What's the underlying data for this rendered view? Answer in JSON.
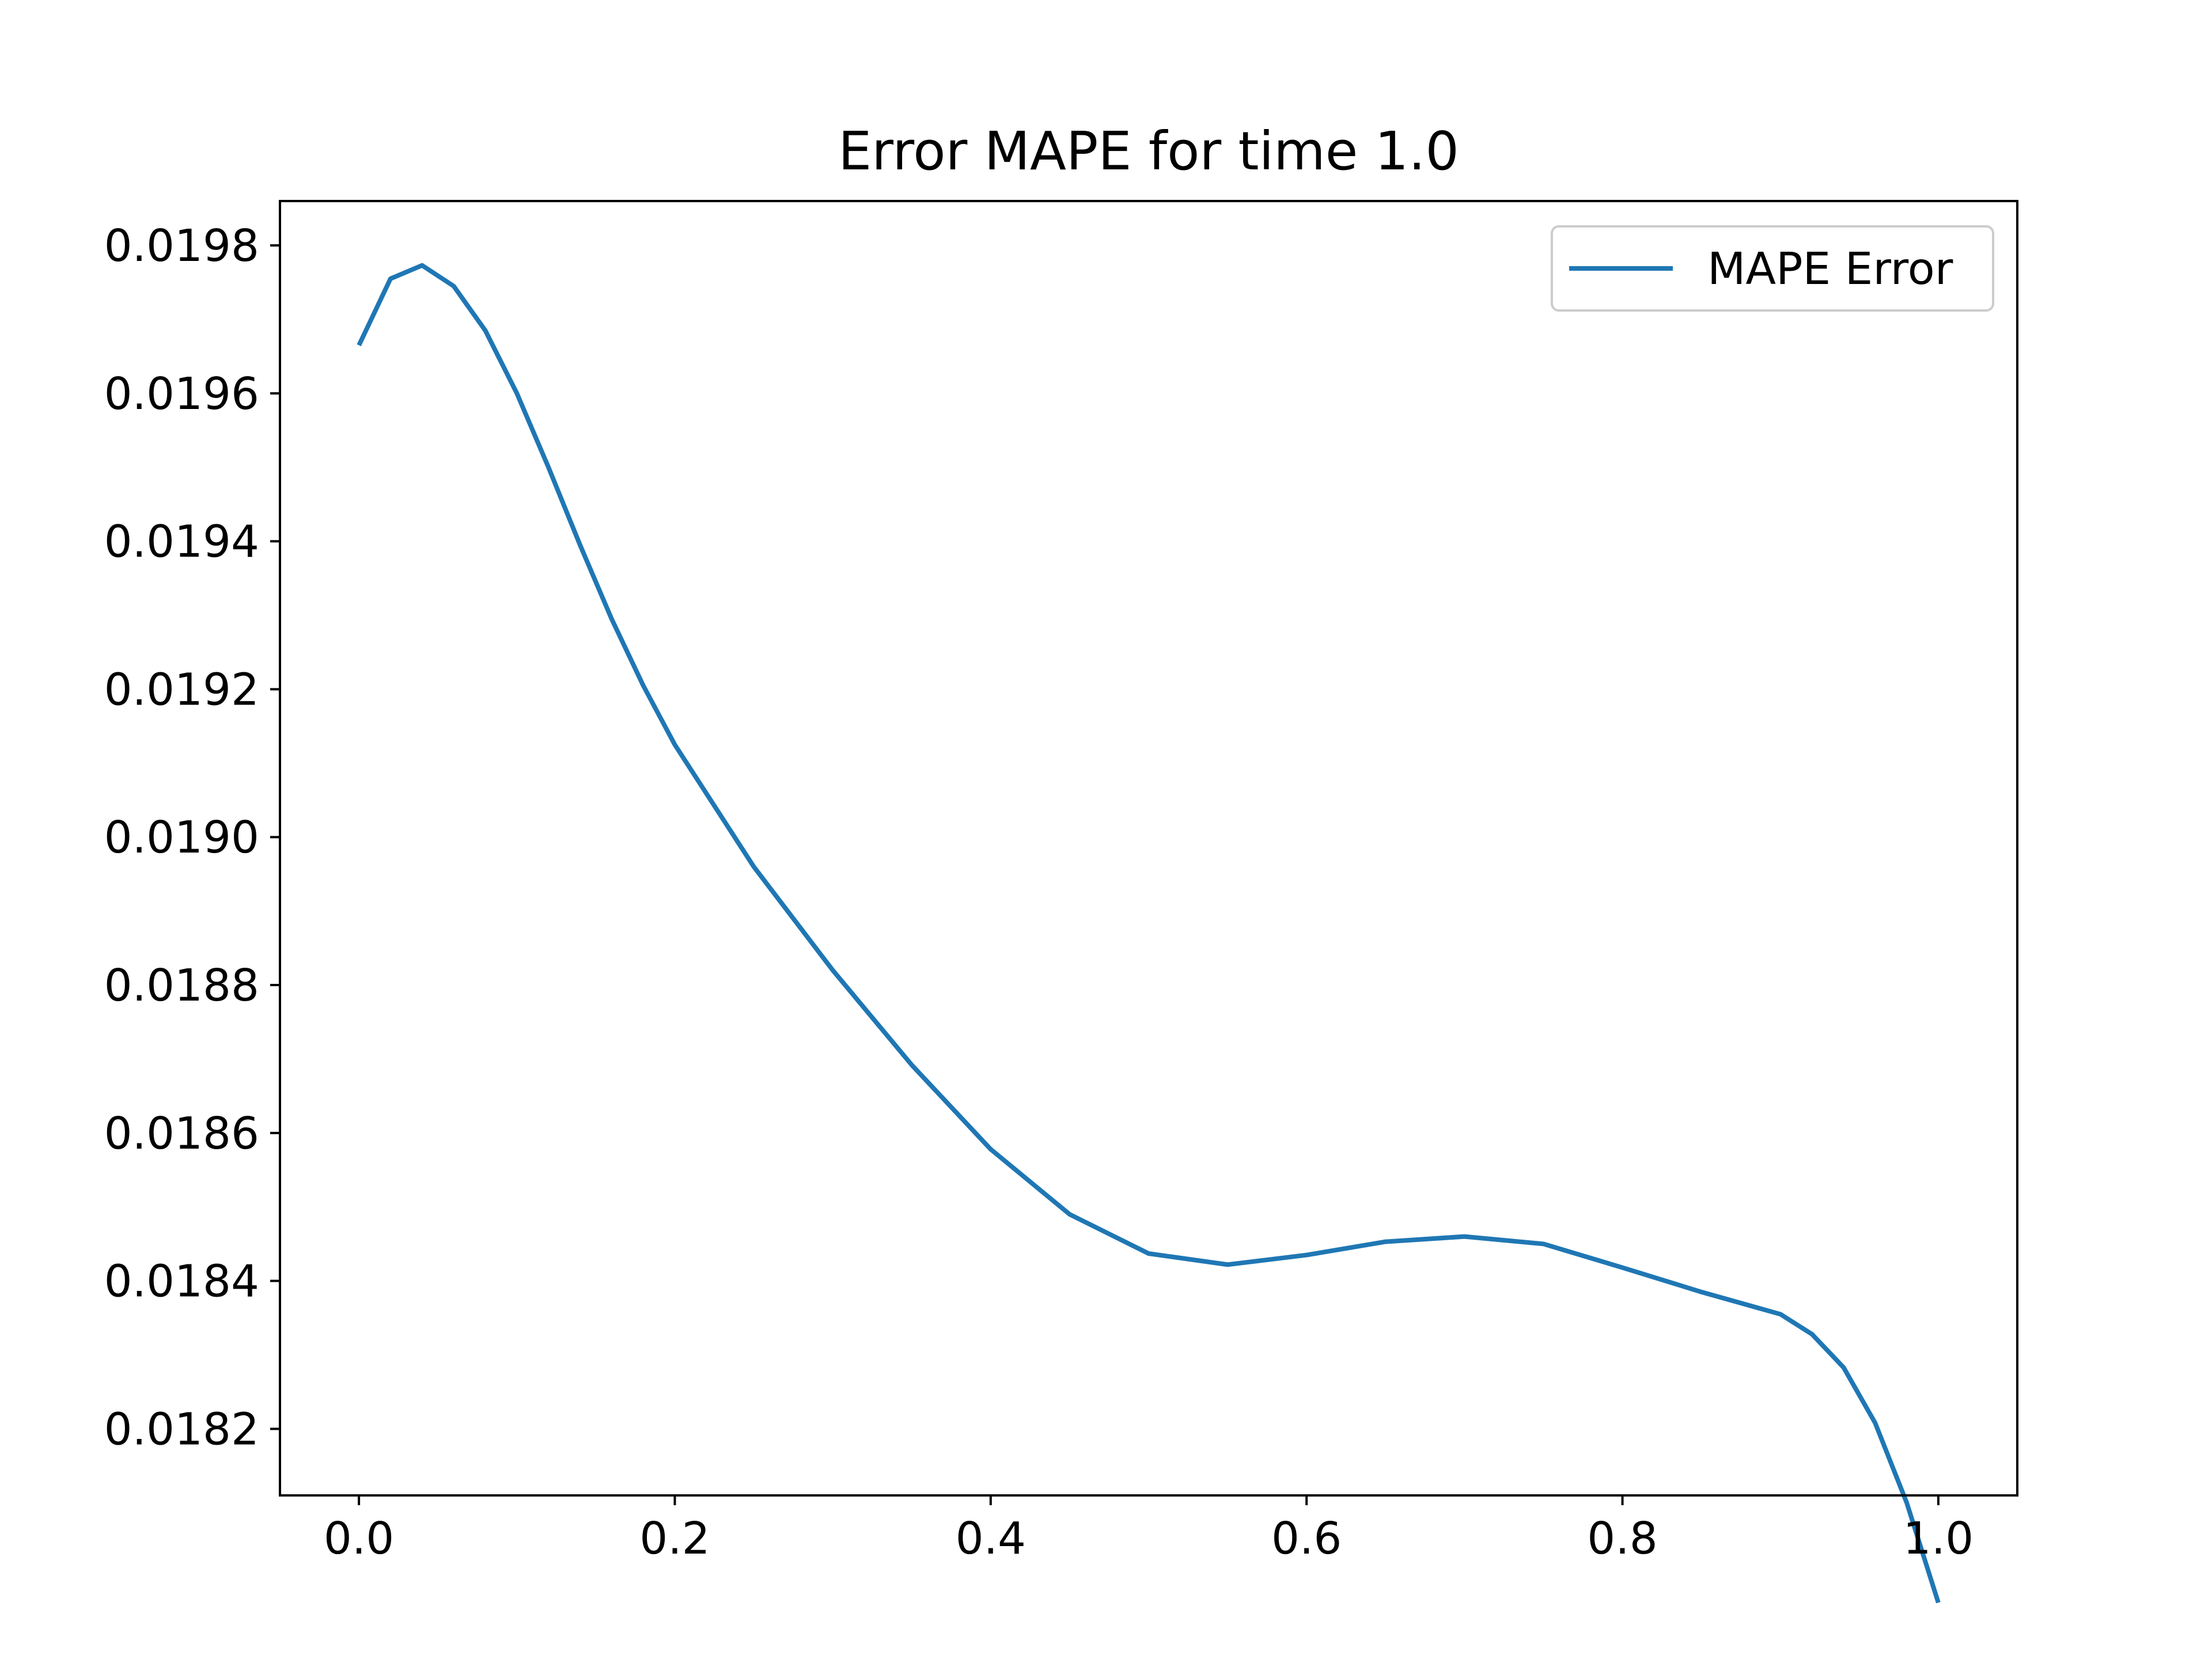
{
  "chart_data": {
    "type": "line",
    "title": "Error MAPE for time 1.0",
    "xlabel": "",
    "ylabel": "",
    "xlim": [
      -0.05,
      1.05
    ],
    "ylim": [
      0.01811,
      0.01986
    ],
    "x_ticks": [
      0.0,
      0.2,
      0.4,
      0.6,
      0.8,
      1.0
    ],
    "x_tick_labels": [
      "0.0",
      "0.2",
      "0.4",
      "0.6",
      "0.8",
      "1.0"
    ],
    "y_ticks": [
      0.0182,
      0.0184,
      0.0186,
      0.0188,
      0.019,
      0.0192,
      0.0194,
      0.0196,
      0.0198
    ],
    "y_tick_labels": [
      "0.0182",
      "0.0184",
      "0.0186",
      "0.0188",
      "0.0190",
      "0.0192",
      "0.0194",
      "0.0196",
      "0.0198"
    ],
    "grid": false,
    "legend": {
      "placement": "top-right",
      "entries": [
        "MAPE Error"
      ]
    },
    "series": [
      {
        "name": "MAPE Error",
        "color": "#1f77b4",
        "x": [
          0.0,
          0.02,
          0.04,
          0.06,
          0.08,
          0.1,
          0.12,
          0.14,
          0.16,
          0.18,
          0.2,
          0.25,
          0.3,
          0.35,
          0.4,
          0.45,
          0.5,
          0.55,
          0.6,
          0.65,
          0.7,
          0.75,
          0.8,
          0.85,
          0.9,
          0.92,
          0.94,
          0.96,
          0.98,
          1.0
        ],
        "y": [
          0.019665,
          0.019755,
          0.019773,
          0.019745,
          0.019685,
          0.0196,
          0.0195,
          0.019395,
          0.019295,
          0.019205,
          0.019125,
          0.01896,
          0.01882,
          0.018692,
          0.018578,
          0.01849,
          0.018437,
          0.018422,
          0.018435,
          0.018453,
          0.01846,
          0.01845,
          0.018418,
          0.018385,
          0.018355,
          0.018328,
          0.018283,
          0.018208,
          0.0181,
          0.017965
        ]
      }
    ]
  }
}
